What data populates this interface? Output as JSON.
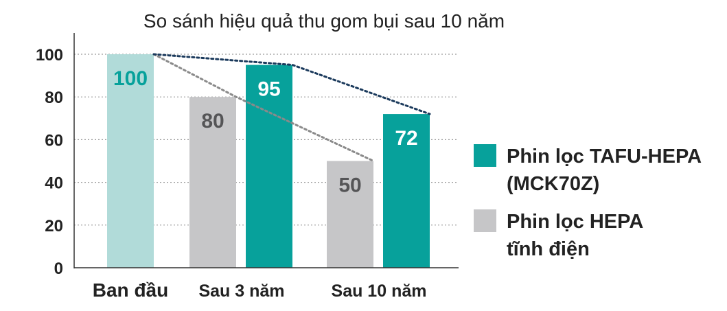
{
  "chart_data": {
    "type": "bar",
    "title": "So sánh hiệu quả thu gom bụi sau 10 năm",
    "xlabel": "",
    "ylabel": "",
    "ylim": [
      0,
      100
    ],
    "yticks": [
      "0",
      "20",
      "40",
      "60",
      "80",
      "100"
    ],
    "grid": "horizontal-dotted",
    "legend_position": "right",
    "categories": [
      "Ban đầu",
      "Sau 3 năm",
      "Sau 10 năm"
    ],
    "initial_bar": {
      "category": "Ban đầu",
      "value": 100,
      "label": "100",
      "color": "#b1dbd9"
    },
    "series": [
      {
        "name": "Phin lọc HEPA tĩnh điện",
        "legend_lines": [
          "Phin lọc HEPA",
          "tĩnh điện"
        ],
        "values": [
          100,
          80,
          50
        ],
        "labels": [
          "",
          "80",
          "50"
        ],
        "color": "#c6c6c8",
        "label_color": "#555557",
        "trend_color": "#8a8a8a"
      },
      {
        "name": "Phin lọc TAFU-HEPA (MCK70Z)",
        "legend_lines": [
          "Phin lọc TAFU-HEPA",
          "(MCK70Z)"
        ],
        "values": [
          100,
          95,
          72
        ],
        "labels": [
          "",
          "95",
          "72"
        ],
        "color": "#07a19b",
        "label_color": "#ffffff",
        "trend_color": "#1b3a5c"
      }
    ]
  },
  "colors": {
    "axis": "#333333",
    "grid": "#9a9a9a",
    "text": "#222222",
    "initial_label": "#07a19b"
  }
}
